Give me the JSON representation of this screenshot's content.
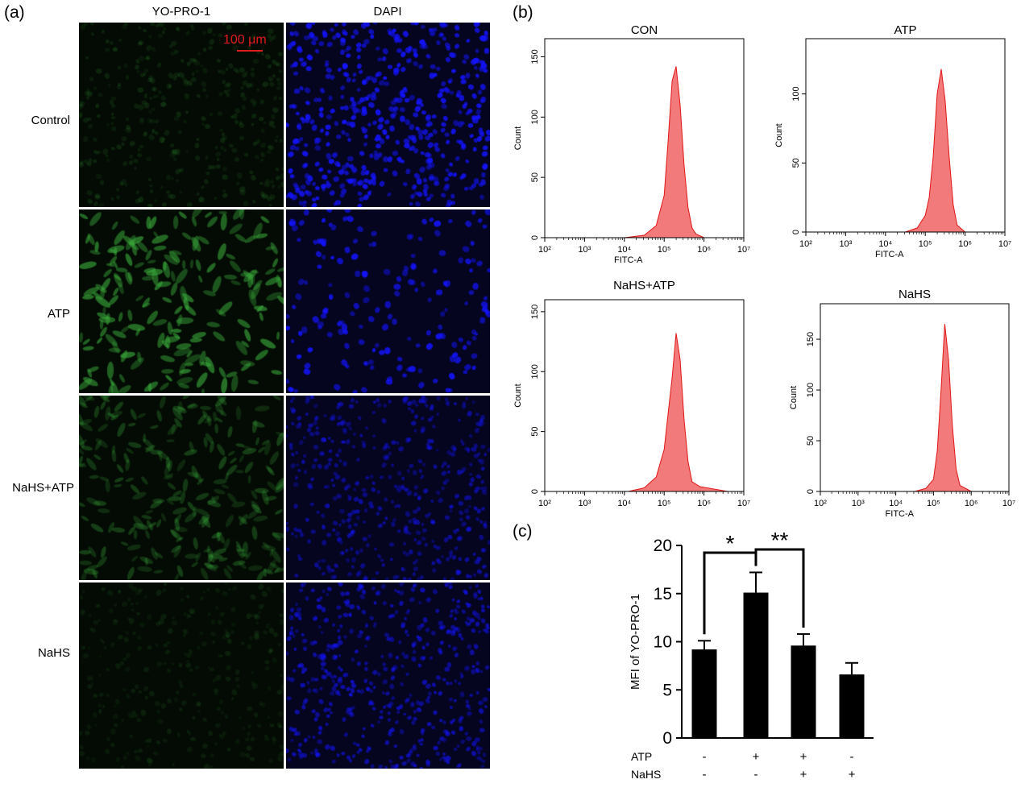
{
  "figure": {
    "panel_a": "(a)",
    "panel_b": "(b)",
    "panel_c": "(c)",
    "columns": [
      "YO-PRO-1",
      "DAPI"
    ],
    "rows": [
      "Control",
      "ATP",
      "NaHS+ATP",
      "NaHS"
    ],
    "scale_bar": "100 μm",
    "colors": {
      "green_channel": "#39a83a",
      "blue_channel": "#1414ff",
      "histogram_fill": "#f27a7a",
      "histogram_stroke": "#e01616",
      "bar_fill": "#000000"
    }
  },
  "chart_data": [
    {
      "type": "area",
      "title": "CON",
      "xlabel": "FITC-A",
      "ylabel": "Count",
      "xscale": "log",
      "xlim": [
        100,
        10000000
      ],
      "xticks": [
        "10²",
        "10³",
        "10⁴",
        "10⁵",
        "10⁶",
        "10⁷"
      ],
      "ylim": [
        0,
        165
      ],
      "yticks": [
        "0",
        "50",
        "100",
        "150"
      ],
      "series": [
        {
          "x": [
            10000,
            31623,
            63096,
            100000,
            125893,
            158489,
            199526,
            251189,
            316228,
            398107,
            501187,
            630957,
            1000000
          ],
          "values": [
            0,
            2,
            10,
            35,
            80,
            130,
            142,
            110,
            60,
            25,
            8,
            3,
            0
          ]
        }
      ]
    },
    {
      "type": "area",
      "title": "ATP",
      "xlabel": "FITC-A",
      "ylabel": "Count",
      "xscale": "log",
      "xlim": [
        100,
        10000000
      ],
      "xticks": [
        "10²",
        "10³",
        "10⁴",
        "10⁵",
        "10⁶",
        "10⁷"
      ],
      "ylim": [
        0,
        140
      ],
      "yticks": [
        "0",
        "50",
        "100"
      ],
      "series": [
        {
          "x": [
            31623,
            63096,
            100000,
            125893,
            158489,
            199526,
            251189,
            316228,
            398107,
            501187,
            630957,
            1000000
          ],
          "values": [
            0,
            3,
            12,
            25,
            55,
            100,
            118,
            95,
            55,
            20,
            5,
            0
          ]
        }
      ]
    },
    {
      "type": "area",
      "title": "NaHS+ATP",
      "xlabel": "",
      "ylabel": "Count",
      "xscale": "log",
      "xlim": [
        100,
        10000000
      ],
      "xticks": [
        "10²",
        "10³",
        "10⁴",
        "10⁵",
        "10⁶",
        "10⁷"
      ],
      "ylim": [
        0,
        160
      ],
      "yticks": [
        "0",
        "50",
        "100",
        "150"
      ],
      "series": [
        {
          "x": [
            12589,
            31623,
            63096,
            100000,
            125893,
            158489,
            199526,
            251189,
            316228,
            398107,
            501187,
            794328,
            3981072
          ],
          "values": [
            0,
            3,
            12,
            35,
            65,
            95,
            132,
            110,
            60,
            25,
            8,
            4,
            0
          ]
        }
      ]
    },
    {
      "type": "area",
      "title": "NaHS",
      "xlabel": "FITC-A",
      "ylabel": "Count",
      "xscale": "log",
      "xlim": [
        100,
        10000000
      ],
      "xticks": [
        "10²",
        "10³",
        "10⁴",
        "10⁵",
        "10⁶",
        "10⁷"
      ],
      "ylim": [
        0,
        185
      ],
      "yticks": [
        "0",
        "50",
        "100",
        "150"
      ],
      "series": [
        {
          "x": [
            31623,
            63096,
            100000,
            125893,
            158489,
            199526,
            251189,
            316228,
            398107,
            501187,
            1000000
          ],
          "values": [
            0,
            3,
            12,
            40,
            100,
            165,
            130,
            65,
            22,
            6,
            0
          ]
        }
      ]
    },
    {
      "type": "bar",
      "title": "",
      "ylabel": "MFI of YO-PRO-1",
      "ylim": [
        0,
        20
      ],
      "yticks": [
        "0",
        "5",
        "10",
        "15",
        "20"
      ],
      "categories": [
        {
          "ATP": "-",
          "NaHS": "-"
        },
        {
          "ATP": "+",
          "NaHS": "-"
        },
        {
          "ATP": "+",
          "NaHS": "+"
        },
        {
          "ATP": "-",
          "NaHS": "+"
        }
      ],
      "row_labels": [
        "ATP",
        "NaHS"
      ],
      "values": [
        9.2,
        15.1,
        9.6,
        6.6
      ],
      "errors": [
        0.9,
        2.1,
        1.2,
        1.2
      ],
      "significance": [
        {
          "from": 0,
          "to": 1,
          "label": "*"
        },
        {
          "from": 1,
          "to": 2,
          "label": "**"
        }
      ]
    }
  ]
}
